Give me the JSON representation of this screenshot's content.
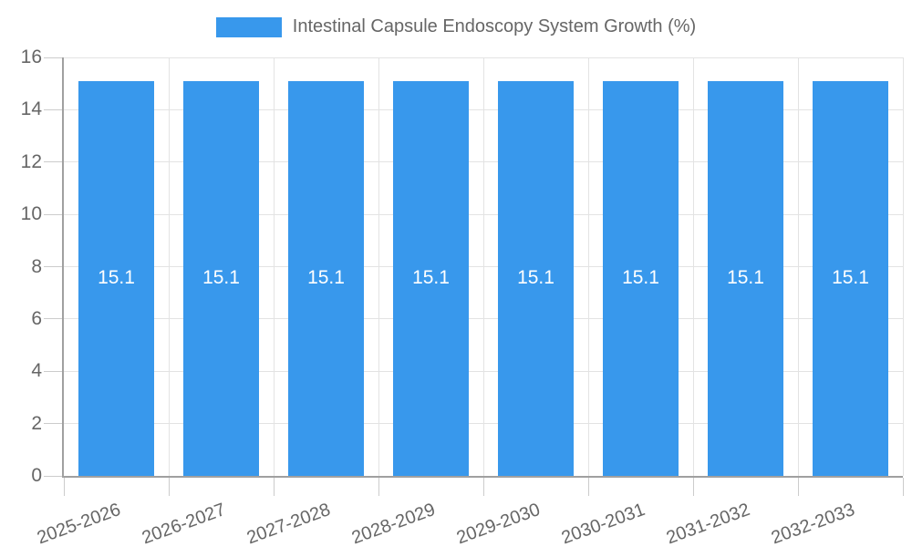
{
  "legend": {
    "items": [
      {
        "label": "Intestinal Capsule Endoscopy System Growth (%)",
        "color": "#3898ec"
      }
    ]
  },
  "chart_data": {
    "type": "bar",
    "title": "Intestinal Capsule Endoscopy System Growth (%)",
    "categories": [
      "2025-2026",
      "2026-2027",
      "2027-2028",
      "2028-2029",
      "2029-2030",
      "2030-2031",
      "2031-2032",
      "2032-2033"
    ],
    "series": [
      {
        "name": "Intestinal Capsule Endoscopy System Growth (%)",
        "values": [
          15.1,
          15.1,
          15.1,
          15.1,
          15.1,
          15.1,
          15.1,
          15.1
        ],
        "color": "#3898ec"
      }
    ],
    "data_labels": [
      "15.1",
      "15.1",
      "15.1",
      "15.1",
      "15.1",
      "15.1",
      "15.1",
      "15.1"
    ],
    "xlabel": "",
    "ylabel": "",
    "ylim": [
      0,
      16
    ],
    "ytick_step": 2,
    "ytick_labels": [
      "0",
      "2",
      "4",
      "6",
      "8",
      "10",
      "12",
      "14",
      "16"
    ],
    "grid": true,
    "legend_position": "top",
    "x_label_rotation_deg": -20
  },
  "colors": {
    "bar": "#3898ec",
    "grid": "#e3e3e3",
    "tick": "#cccccc",
    "axis_border": "#a0a0a0",
    "axis_text": "#666666",
    "data_label": "#ffffff",
    "background": "#ffffff"
  }
}
